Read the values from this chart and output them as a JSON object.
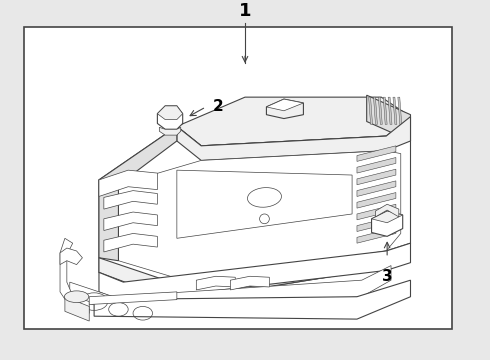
{
  "bg_color": "#e8e8e8",
  "border_color": "#444444",
  "line_color": "#444444",
  "fill_white": "#ffffff",
  "fill_light": "#f0f0f0",
  "fill_mid": "#e0e0e0",
  "label1": "1",
  "label2": "2",
  "label3": "3",
  "figsize": [
    4.9,
    3.6
  ],
  "dpi": 100
}
